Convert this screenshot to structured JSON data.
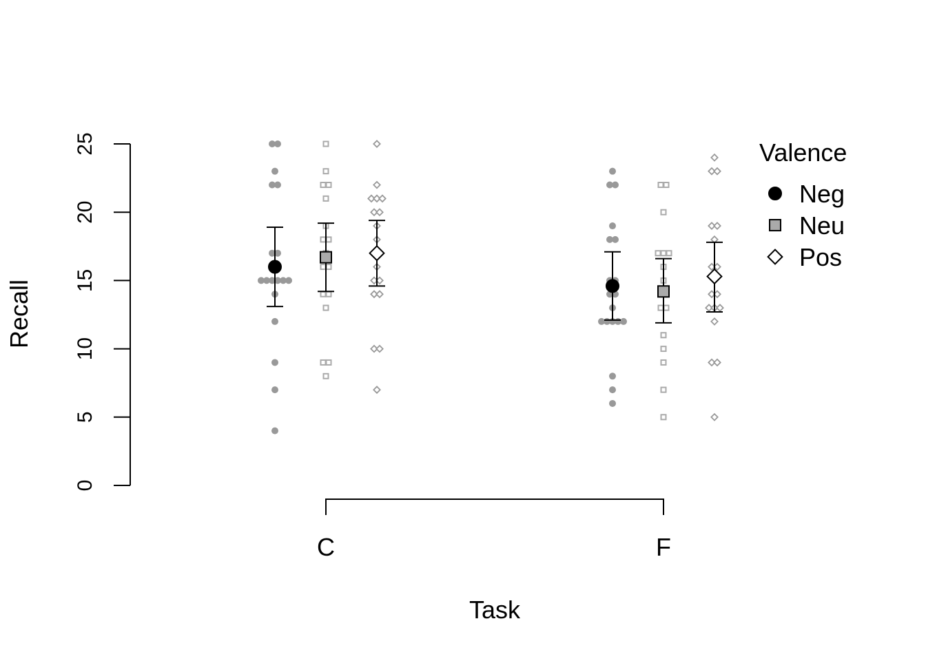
{
  "chart_data": {
    "type": "scatter",
    "title": "",
    "xlabel": "Task",
    "ylabel": "Recall",
    "categories": [
      "C",
      "F"
    ],
    "ylim": [
      0,
      25
    ],
    "yticks": [
      0,
      5,
      10,
      15,
      20,
      25
    ],
    "grid": false,
    "legend": {
      "title": "Valence",
      "position": "top-right",
      "entries": [
        "Neg",
        "Neu",
        "Pos"
      ]
    },
    "series": [
      {
        "name": "Neg",
        "marker": "circle",
        "mean_fill": "#000000",
        "point_color": "#999999",
        "groups": [
          {
            "category": "C",
            "mean": 16.0,
            "ci": [
              13.1,
              18.9
            ],
            "points": [
              25,
              25,
              23,
              22,
              22,
              17,
              17,
              16,
              15,
              15,
              15,
              15,
              15,
              15,
              14,
              12,
              9,
              7,
              4
            ]
          },
          {
            "category": "F",
            "mean": 14.6,
            "ci": [
              12.1,
              17.1
            ],
            "points": [
              23,
              22,
              22,
              19,
              18,
              18,
              15,
              15,
              14,
              14,
              13,
              12,
              12,
              12,
              12,
              12,
              8,
              7,
              6
            ]
          }
        ]
      },
      {
        "name": "Neu",
        "marker": "square",
        "mean_fill": "#aaaaaa",
        "point_color": "#aaaaaa",
        "groups": [
          {
            "category": "C",
            "mean": 16.7,
            "ci": [
              14.2,
              19.2
            ],
            "points": [
              25,
              23,
              22,
              22,
              21,
              19,
              18,
              18,
              17,
              16,
              16,
              14,
              14,
              13,
              9,
              9,
              8
            ]
          },
          {
            "category": "F",
            "mean": 14.2,
            "ci": [
              11.9,
              16.6
            ],
            "points": [
              22,
              22,
              20,
              17,
              17,
              17,
              16,
              15,
              14,
              14,
              13,
              13,
              11,
              10,
              9,
              7,
              5
            ]
          }
        ]
      },
      {
        "name": "Pos",
        "marker": "diamond",
        "mean_fill": "#ffffff",
        "point_color": "#999999",
        "groups": [
          {
            "category": "C",
            "mean": 17.0,
            "ci": [
              14.6,
              19.4
            ],
            "points": [
              25,
              22,
              21,
              21,
              21,
              20,
              20,
              19,
              18,
              17,
              16,
              15,
              15,
              14,
              14,
              10,
              10,
              7
            ]
          },
          {
            "category": "F",
            "mean": 15.3,
            "ci": [
              12.7,
              17.8
            ],
            "points": [
              24,
              23,
              23,
              19,
              19,
              18,
              16,
              16,
              15,
              14,
              14,
              13,
              13,
              13,
              12,
              9,
              9,
              5
            ]
          }
        ]
      }
    ]
  }
}
